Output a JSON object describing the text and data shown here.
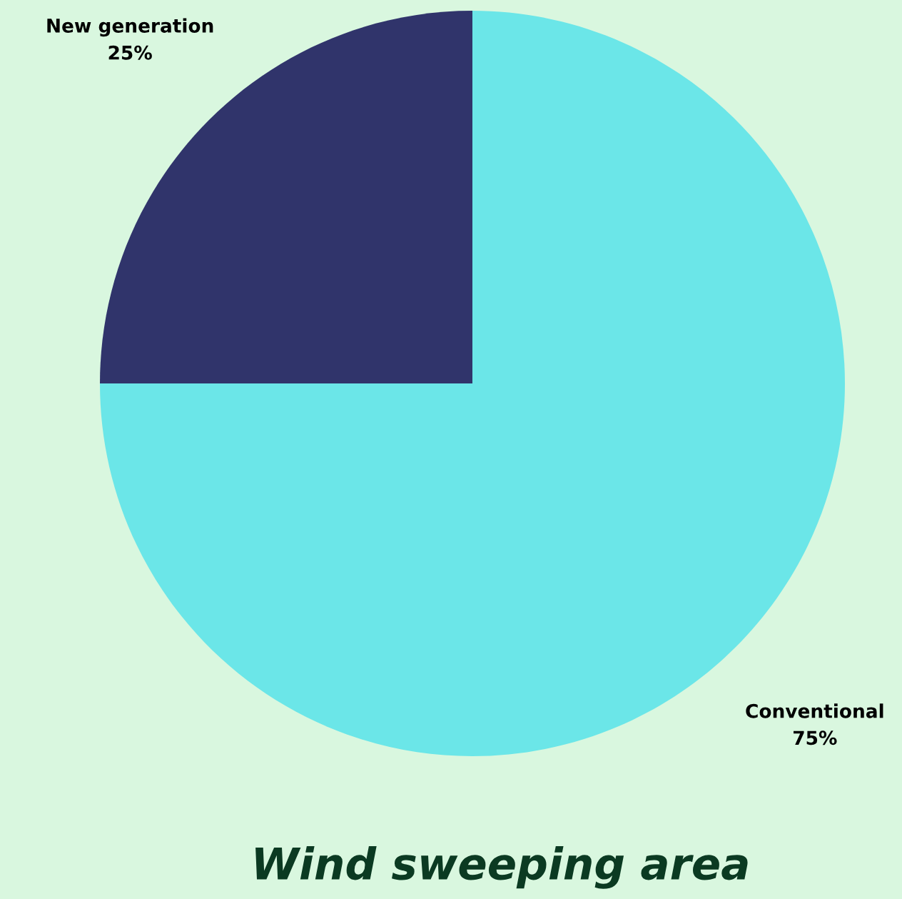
{
  "chart_data": {
    "type": "pie",
    "title": "Wind sweeping area",
    "categories": [
      "New generation",
      "Conventional"
    ],
    "values": [
      25,
      75
    ],
    "colors": [
      "#30346b",
      "#6be6e8"
    ],
    "value_labels": [
      "25%",
      "75%"
    ],
    "legend": false
  }
}
